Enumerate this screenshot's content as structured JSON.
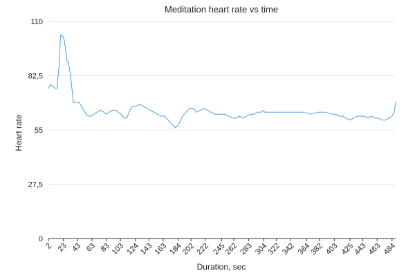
{
  "chart_data": {
    "type": "line",
    "title": "Meditation heart rate vs time",
    "xlabel": "Duration, sec",
    "ylabel": "Heart rate",
    "ylim": [
      0,
      110
    ],
    "xlim": [
      2,
      489
    ],
    "y_ticks": [
      "0",
      "27,5",
      "55",
      "82,5",
      "110"
    ],
    "y_tick_values": [
      0,
      27.5,
      55,
      82.5,
      110
    ],
    "x_tick_labels": [
      "2",
      "23",
      "43",
      "63",
      "83",
      "103",
      "124",
      "143",
      "163",
      "184",
      "202",
      "222",
      "245",
      "262",
      "283",
      "304",
      "322",
      "342",
      "364",
      "382",
      "403",
      "425",
      "443",
      "463",
      "484"
    ],
    "x_tick_values": [
      2,
      23,
      43,
      63,
      83,
      103,
      124,
      143,
      163,
      184,
      202,
      222,
      245,
      262,
      283,
      304,
      322,
      342,
      364,
      382,
      403,
      425,
      443,
      463,
      484
    ],
    "grid": true,
    "series": [
      {
        "color": "#4a9fe0",
        "x": [
          2,
          5,
          9,
          12,
          14,
          17,
          19,
          21,
          24,
          26,
          28,
          30,
          33,
          35,
          37,
          40,
          45,
          50,
          55,
          58,
          62,
          66,
          70,
          75,
          80,
          83,
          87,
          92,
          97,
          100,
          104,
          108,
          112,
          116,
          120,
          125,
          130,
          135,
          140,
          145,
          150,
          155,
          160,
          165,
          170,
          175,
          180,
          185,
          190,
          195,
          200,
          205,
          210,
          215,
          220,
          225,
          230,
          235,
          240,
          245,
          250,
          255,
          260,
          265,
          270,
          275,
          280,
          285,
          290,
          295,
          300,
          304,
          305,
          310,
          320,
          330,
          340,
          350,
          360,
          370,
          380,
          390,
          400,
          405,
          410,
          415,
          420,
          425,
          430,
          435,
          440,
          445,
          450,
          455,
          460,
          465,
          470,
          475,
          480,
          484,
          487,
          489
        ],
        "y": [
          76,
          78,
          77,
          76,
          76,
          88,
          103,
          103,
          101,
          96,
          90,
          89,
          83,
          76,
          69,
          69,
          69,
          66,
          63,
          62,
          62,
          63,
          64,
          65,
          64,
          63,
          64,
          65,
          65,
          64,
          63,
          61,
          61,
          65,
          67,
          67,
          68,
          67,
          66,
          65,
          64,
          63,
          62,
          62,
          60,
          58,
          56,
          58,
          62,
          64,
          66,
          66,
          64,
          65,
          66,
          65,
          64,
          63,
          63,
          63,
          63,
          62,
          61,
          61,
          62,
          61,
          62,
          63,
          63,
          64,
          64,
          65,
          64,
          64,
          64,
          64,
          64,
          64,
          64,
          63,
          64,
          64,
          63,
          63,
          62,
          62,
          61,
          60,
          61,
          62,
          62,
          62,
          61,
          62,
          61,
          61,
          60,
          60,
          61,
          62,
          64,
          69
        ]
      }
    ]
  }
}
